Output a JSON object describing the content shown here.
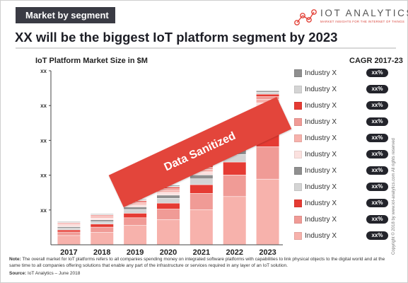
{
  "badge": "Market by segment",
  "brand": {
    "name": "IOT ANALYTICS",
    "tagline": "MARKET INSIGHTS FOR THE INTERNET OF THINGS"
  },
  "headline": "XX will be the biggest IoT platform segment by 2023",
  "cagr_title": "CAGR 2017-23",
  "banner_text": "Data Sanitized",
  "copyright": "Copyright © 2018 by www.iot-analytics.com All rights reserved",
  "note_label": "Note:",
  "note_text": "The overall market for IoT platforms refers to all companies spending money on integrated software platforms with capabilities to link physical objects to the digital world and at the same time to all companies offering solutions that enable any part of the infrastructure or services required in any layer of an IoT solution.",
  "source_label": "Source:",
  "source_text": "IoT Analytics – June 2018",
  "colors": {
    "accent": "#e3453b",
    "badge_bg": "#3a3b44",
    "pill_bg": "#23242b"
  },
  "legend": [
    {
      "label": "Industry X",
      "cagr": "xx%",
      "color": "#8f8f8f"
    },
    {
      "label": "Industry X",
      "cagr": "xx%",
      "color": "#d4d4d4"
    },
    {
      "label": "Industry X",
      "cagr": "xx%",
      "color": "#e53b33"
    },
    {
      "label": "Industry X",
      "cagr": "xx%",
      "color": "#f09b96"
    },
    {
      "label": "Industry X",
      "cagr": "xx%",
      "color": "#f7b2ac"
    },
    {
      "label": "Industry X",
      "cagr": "xx%",
      "color": "#fbe1df"
    },
    {
      "label": "Industry X",
      "cagr": "xx%",
      "color": "#8f8f8f"
    },
    {
      "label": "Industry X",
      "cagr": "xx%",
      "color": "#d4d4d4"
    },
    {
      "label": "Industry X",
      "cagr": "xx%",
      "color": "#e53b33"
    },
    {
      "label": "Industry X",
      "cagr": "xx%",
      "color": "#f09b96"
    },
    {
      "label": "Industry X",
      "cagr": "xx%",
      "color": "#f7b2ac"
    }
  ],
  "chart_data": {
    "type": "bar",
    "stacked": true,
    "title": "IoT Platform Market Size in $M",
    "categories": [
      "2017",
      "2018",
      "2019",
      "2020",
      "2021",
      "2022",
      "2023"
    ],
    "y_tick_labels": [
      "xx",
      "xx",
      "xx",
      "xx",
      "xx"
    ],
    "ylim": [
      0,
      5
    ],
    "grid": false,
    "segment_colors": [
      "#f7b2ac",
      "#f09b96",
      "#e53b33",
      "#d4d4d4",
      "#8f8f8f",
      "#fbe1df",
      "#f7b2ac",
      "#f09b96",
      "#e53b33",
      "#d4d4d4",
      "#8f8f8f"
    ],
    "series": [
      {
        "values": [
          0.26,
          0.35,
          0.55,
          0.72,
          1.0,
          1.38,
          1.88
        ]
      },
      {
        "values": [
          0.1,
          0.15,
          0.22,
          0.3,
          0.47,
          0.62,
          0.93
        ]
      },
      {
        "values": [
          0.06,
          0.09,
          0.13,
          0.17,
          0.25,
          0.37,
          0.6
        ]
      },
      {
        "values": [
          0.05,
          0.07,
          0.11,
          0.14,
          0.17,
          0.22,
          0.33
        ]
      },
      {
        "values": [
          0.04,
          0.05,
          0.07,
          0.09,
          0.11,
          0.13,
          0.19
        ]
      },
      {
        "values": [
          0.04,
          0.05,
          0.06,
          0.08,
          0.09,
          0.1,
          0.14
        ]
      },
      {
        "values": [
          0.03,
          0.04,
          0.05,
          0.06,
          0.07,
          0.08,
          0.1
        ]
      },
      {
        "values": [
          0.02,
          0.03,
          0.04,
          0.05,
          0.06,
          0.07,
          0.08
        ]
      },
      {
        "values": [
          0.02,
          0.02,
          0.03,
          0.04,
          0.05,
          0.06,
          0.07
        ]
      },
      {
        "values": [
          0.02,
          0.02,
          0.03,
          0.03,
          0.04,
          0.05,
          0.06
        ]
      },
      {
        "values": [
          0.02,
          0.02,
          0.02,
          0.03,
          0.03,
          0.04,
          0.04
        ]
      }
    ]
  }
}
